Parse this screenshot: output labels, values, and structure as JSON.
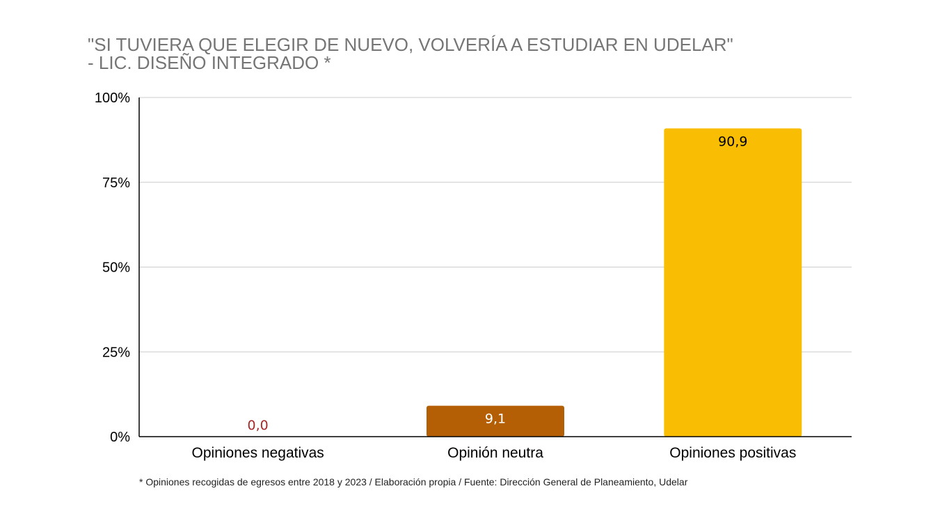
{
  "chart_data": {
    "type": "bar",
    "title_lines": [
      "\"SI TUVIERA QUE ELEGIR DE NUEVO, VOLVERÍA A ESTUDIAR EN UDELAR\"",
      "- LIC. DISEÑO INTEGRADO *"
    ],
    "categories": [
      "Opiniones negativas",
      "Opinión neutra",
      "Opiniones positivas"
    ],
    "values": [
      0.0,
      9.1,
      90.9
    ],
    "value_labels": [
      "0,0",
      "9,1",
      "90,9"
    ],
    "bar_colors": [
      "#a52a2a",
      "#b45f06",
      "#f9bd03"
    ],
    "label_colors": [
      "#a52a2a",
      "#ffffff",
      "#000000"
    ],
    "ylim": [
      0,
      100
    ],
    "yticks": [
      0,
      25,
      50,
      75,
      100
    ],
    "ytick_labels": [
      "0%",
      "25%",
      "50%",
      "75%",
      "100%"
    ],
    "grid": true,
    "grid_color": "#cccccc",
    "legend": "none",
    "footnote": "* Opiniones recogidas de egresos entre 2018 y 2023 / Elaboración propia / Fuente: Dirección General de Planeamiento, Udelar"
  }
}
